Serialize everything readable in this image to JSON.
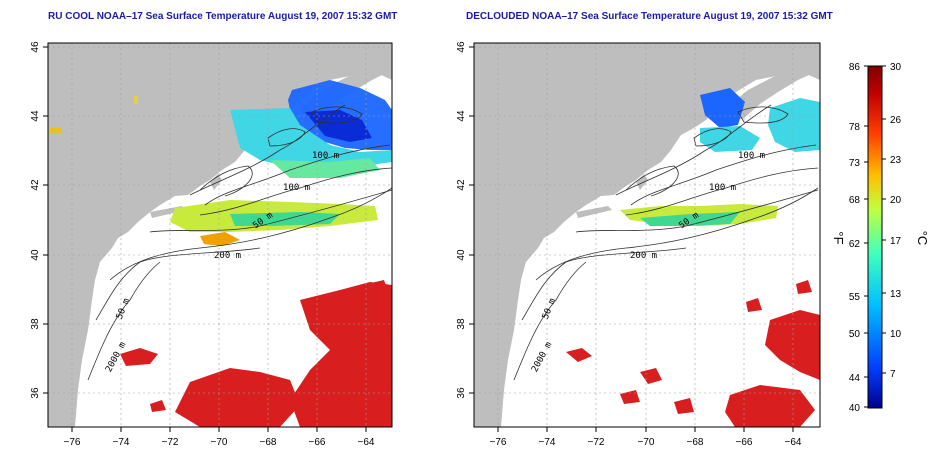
{
  "panels": [
    {
      "id": "left",
      "title": "RU COOL NOAA–17 Sea Surface Temperature August 19, 2007 15:32 GMT",
      "contour_labels": [
        "100 m",
        "100 m",
        "50 m",
        "200 m",
        "50 m",
        "2000 m"
      ]
    },
    {
      "id": "right",
      "title": "DECLOUDED NOAA–17 Sea Surface Temperature August 19, 2007 15:32 GMT",
      "contour_labels": [
        "100 m",
        "100 m",
        "50 m",
        "200 m",
        "50 m",
        "2000 m"
      ]
    }
  ],
  "axes": {
    "longitude_ticks": [
      "−76",
      "−74",
      "−72",
      "−70",
      "−68",
      "−66",
      "−64"
    ],
    "latitude_ticks": [
      "36",
      "38",
      "40",
      "42",
      "44",
      "46"
    ],
    "lon_range": [
      -77.2,
      -63.0
    ],
    "lat_range": [
      35.0,
      46.0
    ]
  },
  "colorbar": {
    "fahrenheit_label": "°F",
    "celsius_label": "°C",
    "fahrenheit_ticks": [
      "86",
      "78",
      "73",
      "68",
      "62",
      "55",
      "50",
      "44",
      "40"
    ],
    "celsius_ticks": [
      "30",
      "26",
      "23",
      "20",
      "17",
      "13",
      "10",
      "7"
    ],
    "celsius_range": [
      4.4,
      30
    ],
    "colors": [
      "#00008f",
      "#0040ff",
      "#00bfff",
      "#40ffbf",
      "#bfff40",
      "#ffbf00",
      "#ff4000",
      "#bf0000",
      "#800000"
    ]
  },
  "colors": {
    "land": "#bebebe",
    "ocean": "#ffffff",
    "grid": "#a0a0a0",
    "title": "#1a1aa8"
  }
}
